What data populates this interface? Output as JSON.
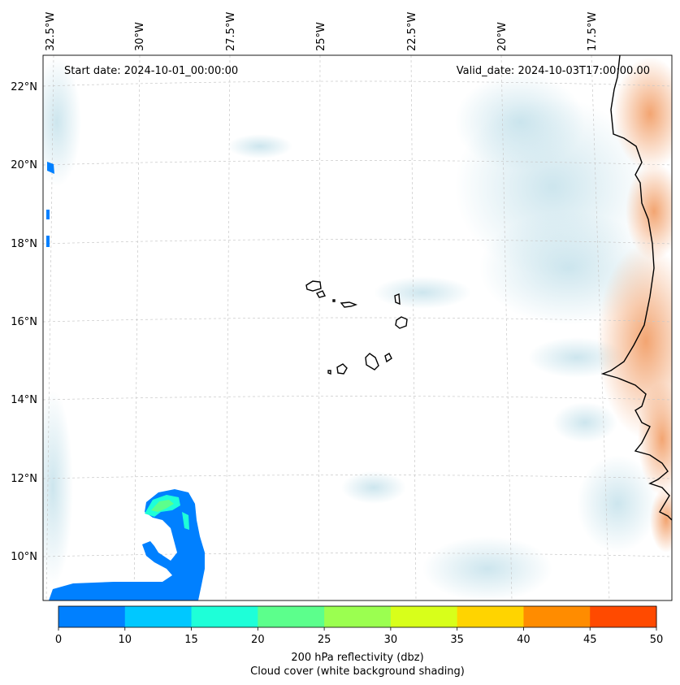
{
  "header": {
    "start_date": "Start date: 2024-10-01_00:00:00",
    "valid_date": "Valid_date: 2024-10-03T17:00:00.00"
  },
  "map": {
    "lon_labels": [
      "32.5°W",
      "30°W",
      "27.5°W",
      "25°W",
      "22.5°W",
      "20°W",
      "17.5°W"
    ],
    "lat_labels": [
      "22°N",
      "20°N",
      "18°N",
      "16°N",
      "14°N",
      "12°N",
      "10°N"
    ],
    "colors": {
      "land_warm": "#f2a06a",
      "cloud_shading": "#cfe6ee",
      "coastline": "#000000",
      "gridline": "#c8c8c8"
    }
  },
  "colorbar": {
    "ticks": [
      "0",
      "10",
      "15",
      "20",
      "25",
      "30",
      "35",
      "40",
      "45",
      "50"
    ],
    "colors": [
      "#0080ff",
      "#00c8ff",
      "#1effd8",
      "#5cff8c",
      "#9bff50",
      "#d8ff1a",
      "#ffd400",
      "#ff8c00",
      "#ff4a00"
    ],
    "label_line1": "200 hPa reflectivity (dbz)",
    "label_line2": "Cloud cover (white background shading)"
  }
}
